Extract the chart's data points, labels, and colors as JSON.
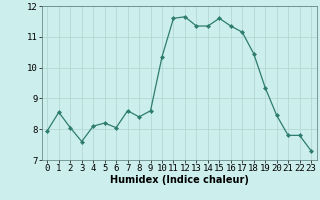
{
  "x": [
    0,
    1,
    2,
    3,
    4,
    5,
    6,
    7,
    8,
    9,
    10,
    11,
    12,
    13,
    14,
    15,
    16,
    17,
    18,
    19,
    20,
    21,
    22,
    23
  ],
  "y": [
    7.95,
    8.55,
    8.05,
    7.6,
    8.1,
    8.2,
    8.05,
    8.6,
    8.4,
    8.6,
    10.35,
    11.6,
    11.65,
    11.35,
    11.35,
    11.6,
    11.35,
    11.15,
    10.45,
    9.35,
    8.45,
    7.8,
    7.8,
    7.3
  ],
  "line_color": "#2e7d6e",
  "marker": "D",
  "marker_size": 2,
  "bg_color": "#cceeed",
  "grid_color": "#b0d4d0",
  "xlabel": "Humidex (Indice chaleur)",
  "ylim": [
    7,
    12
  ],
  "xlim": [
    -0.5,
    23.5
  ],
  "yticks": [
    7,
    8,
    9,
    10,
    11,
    12
  ],
  "xticks": [
    0,
    1,
    2,
    3,
    4,
    5,
    6,
    7,
    8,
    9,
    10,
    11,
    12,
    13,
    14,
    15,
    16,
    17,
    18,
    19,
    20,
    21,
    22,
    23
  ],
  "label_fontsize": 7,
  "tick_fontsize": 6.5
}
